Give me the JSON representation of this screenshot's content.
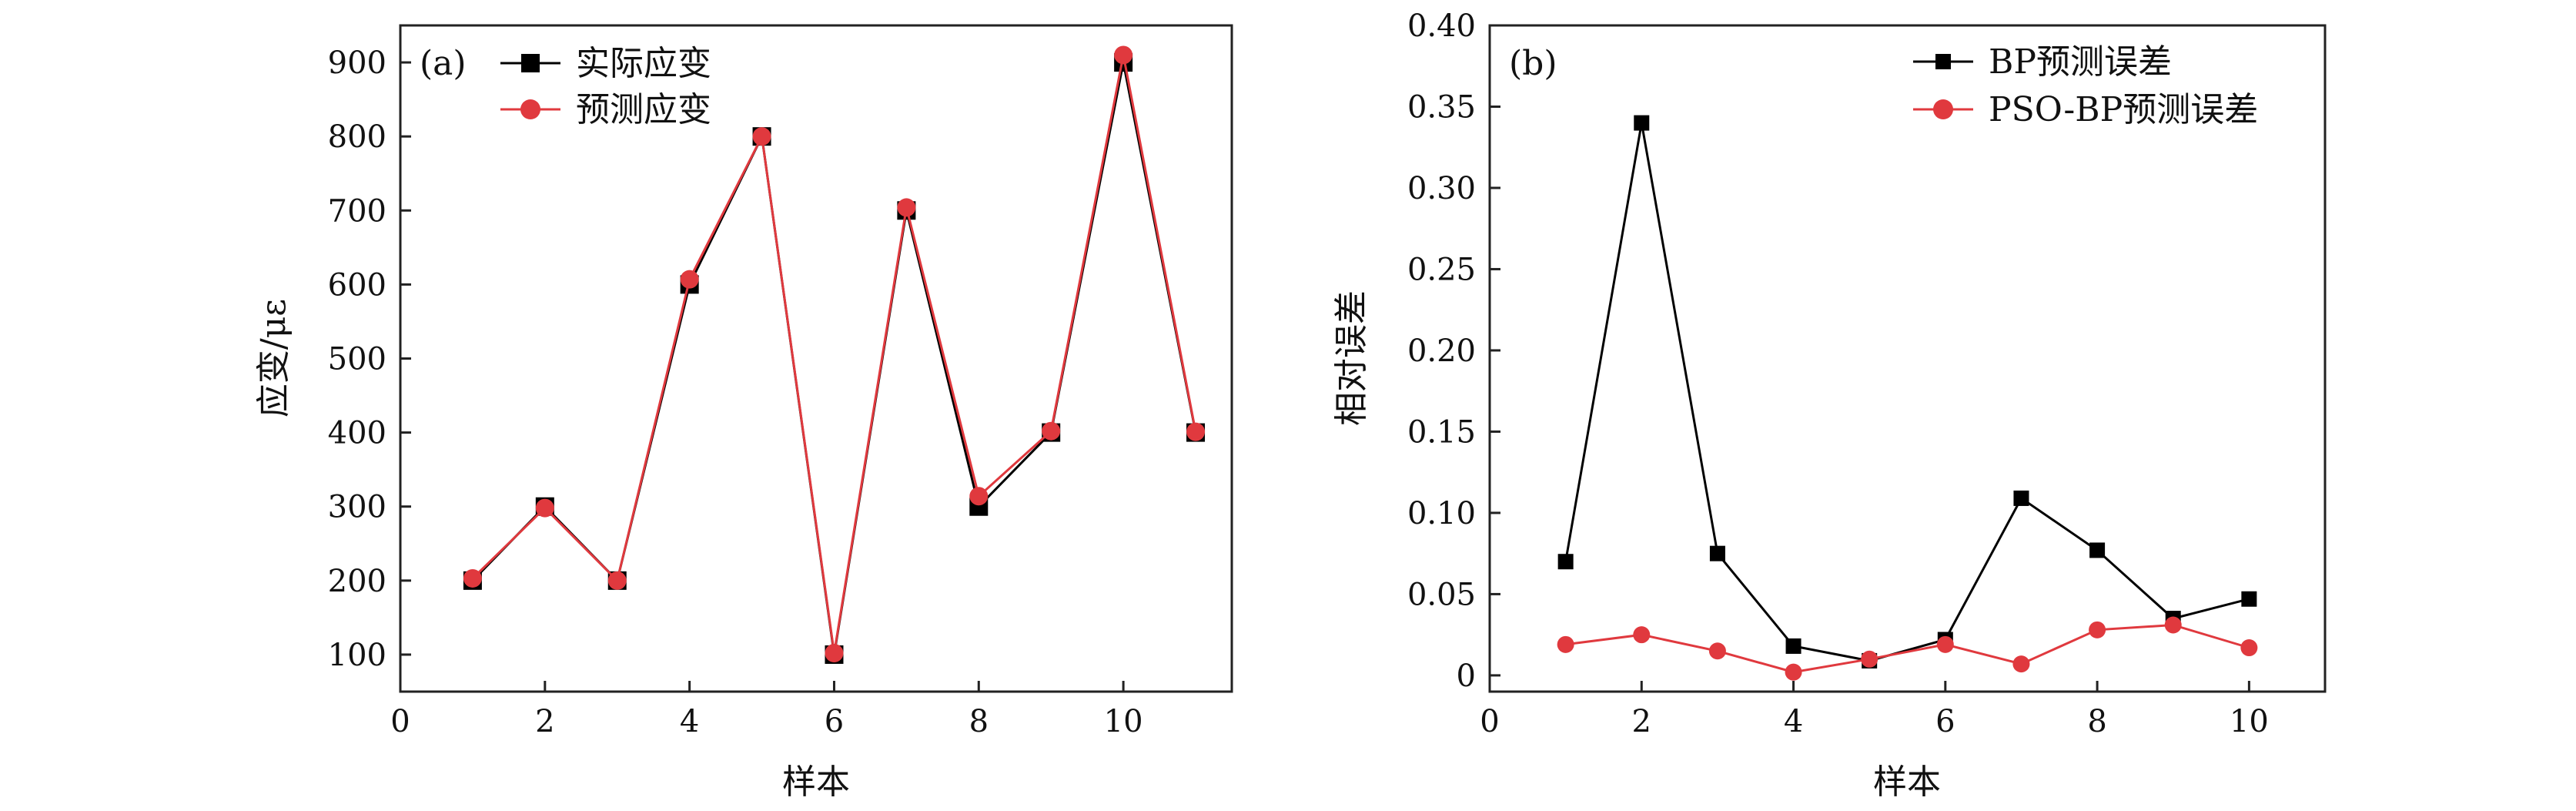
{
  "chart_data": [
    {
      "panel_label": "(a)",
      "type": "line",
      "xlabel": "样本",
      "ylabel": "应变/με",
      "xlim": [
        0,
        11.5
      ],
      "ylim": [
        50,
        950
      ],
      "xticks": [
        0,
        2,
        4,
        6,
        8,
        10
      ],
      "yticks": [
        100,
        200,
        300,
        400,
        500,
        600,
        700,
        800,
        900
      ],
      "legend_position": "top-left",
      "series": [
        {
          "name": "实际应变",
          "color": "#000000",
          "marker": "square",
          "x": [
            1,
            2,
            3,
            4,
            5,
            6,
            7,
            8,
            9,
            10,
            11
          ],
          "values": [
            200,
            300,
            200,
            600,
            800,
            100,
            700,
            300,
            400,
            900,
            400
          ]
        },
        {
          "name": "预测应变",
          "color": "#e0393e",
          "marker": "circle",
          "x": [
            1,
            2,
            3,
            4,
            5,
            6,
            7,
            8,
            9,
            10,
            11
          ],
          "values": [
            203,
            298,
            200,
            607,
            800,
            102,
            704,
            314,
            402,
            910,
            401
          ]
        }
      ]
    },
    {
      "panel_label": "(b)",
      "type": "line",
      "xlabel": "样本",
      "ylabel": "相对误差",
      "xlim": [
        0,
        11
      ],
      "ylim": [
        -0.01,
        0.4
      ],
      "xticks": [
        0,
        2,
        4,
        6,
        8,
        10
      ],
      "yticks": [
        "0",
        "0.05",
        "0.10",
        "0.15",
        "0.20",
        "0.25",
        "0.30",
        "0.35",
        "0.40"
      ],
      "legend_position": "top-right",
      "series": [
        {
          "name": "BP预测误差",
          "color": "#000000",
          "marker": "square",
          "x": [
            1,
            2,
            3,
            4,
            5,
            6,
            7,
            8,
            9,
            10
          ],
          "values": [
            0.07,
            0.34,
            0.075,
            0.018,
            0.009,
            0.022,
            0.109,
            0.077,
            0.035,
            0.047
          ]
        },
        {
          "name": "PSO-BP预测误差",
          "color": "#e0393e",
          "marker": "circle",
          "x": [
            1,
            2,
            3,
            4,
            5,
            6,
            7,
            8,
            9,
            10
          ],
          "values": [
            0.019,
            0.025,
            0.015,
            0.002,
            0.01,
            0.019,
            0.007,
            0.028,
            0.031,
            0.017
          ]
        }
      ]
    }
  ]
}
